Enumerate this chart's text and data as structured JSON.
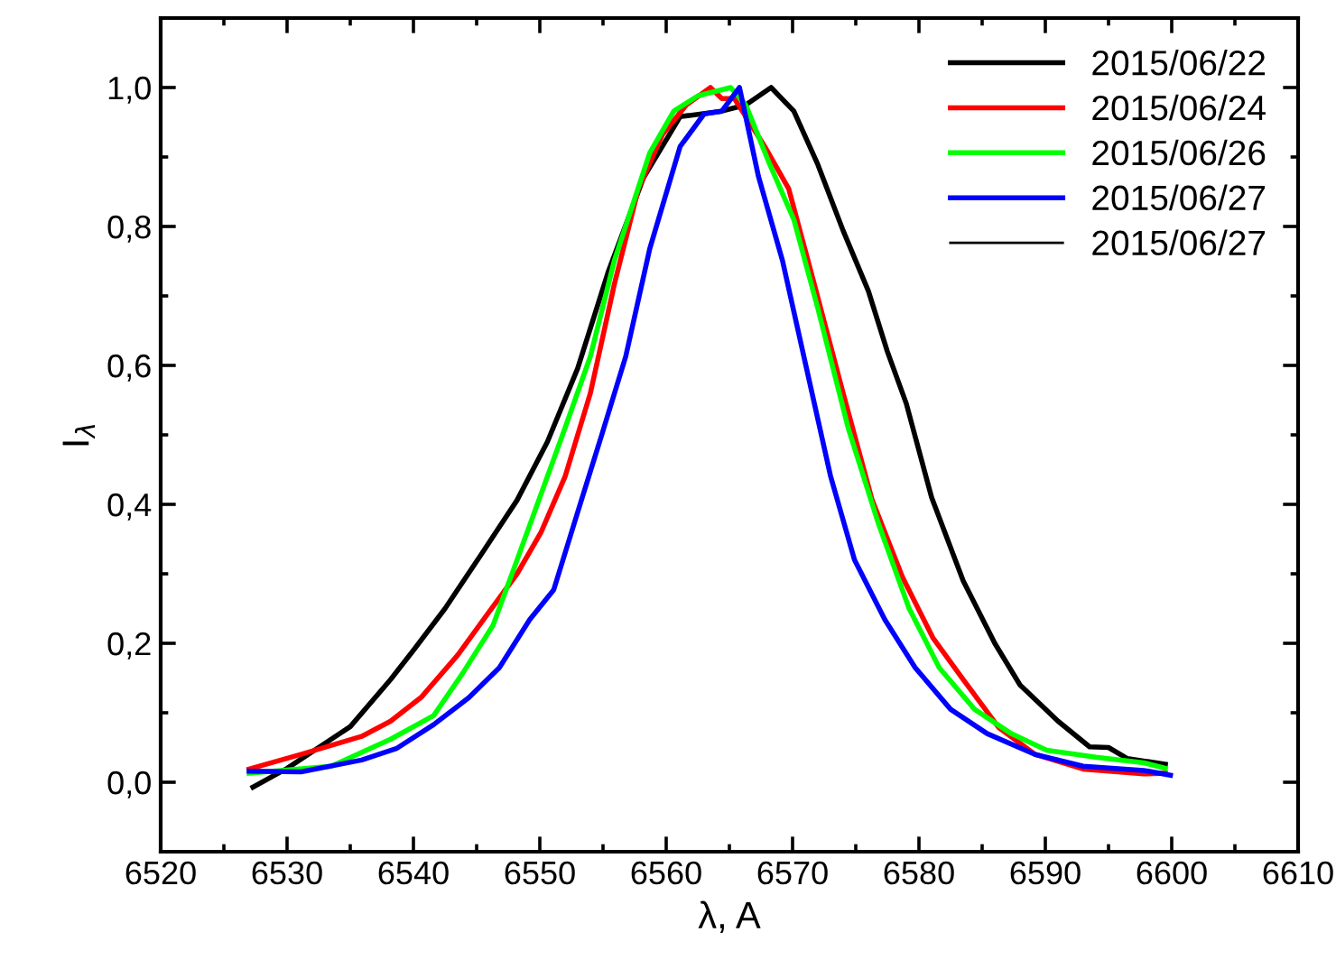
{
  "chart_data": {
    "type": "line",
    "xlabel": "λ, A",
    "ylabel": "I$_{λ}$",
    "xlim": [
      6520,
      6610
    ],
    "xticks": [
      6520,
      6530,
      6540,
      6550,
      6560,
      6570,
      6580,
      6590,
      6600,
      6610
    ],
    "ylim": [
      -0.1,
      1.1
    ],
    "yticks": [
      {
        "value": 0,
        "label": "0,0"
      },
      {
        "value": 0.2,
        "label": "0,2"
      },
      {
        "value": 0.4,
        "label": "0,4"
      },
      {
        "value": 0.6,
        "label": "0,6"
      },
      {
        "value": 0.8,
        "label": "0,8"
      },
      {
        "value": 1.0,
        "label": "1,0"
      }
    ],
    "grid": false,
    "legend": "top right",
    "line_style": "solid",
    "marker": "none",
    "series": [
      {
        "name": "2015/06/22",
        "color": "#000000",
        "x": [
          6527.3,
          6530,
          6533.5,
          6535,
          6538.2,
          6540,
          6542.5,
          6545.4,
          6548.2,
          6550.6,
          6553,
          6555.4,
          6558.2,
          6561.1,
          6564.4,
          6566.3,
          6568.3,
          6570.1,
          6572,
          6574,
          6576,
          6577.5,
          6579,
          6581,
          6583.5,
          6586,
          6588,
          6591,
          6593.5,
          6595,
          6596.5,
          6599.5
        ],
        "values": [
          -0.007,
          0.02,
          0.062,
          0.08,
          0.148,
          0.19,
          0.25,
          0.329,
          0.406,
          0.49,
          0.596,
          0.734,
          0.87,
          0.958,
          0.966,
          0.975,
          1.0,
          0.966,
          0.889,
          0.794,
          0.707,
          0.62,
          0.545,
          0.41,
          0.29,
          0.2,
          0.14,
          0.088,
          0.051,
          0.05,
          0.034,
          0.026
        ]
      },
      {
        "name": "2015/06/24",
        "color": "#ff0000",
        "x": [
          6527,
          6531.1,
          6535.9,
          6538.2,
          6540.6,
          6543.5,
          6545.9,
          6548.2,
          6550.1,
          6552,
          6554,
          6555.9,
          6557.8,
          6559.7,
          6561.6,
          6563.5,
          6564.4,
          6565.4,
          6567.8,
          6569.7,
          6571.6,
          6574,
          6576.3,
          6578.7,
          6581.1,
          6583.5,
          6586.3,
          6589.2,
          6593,
          6597.8,
          6599.5
        ],
        "values": [
          0.019,
          0.04,
          0.066,
          0.088,
          0.122,
          0.183,
          0.243,
          0.3,
          0.36,
          0.44,
          0.56,
          0.717,
          0.854,
          0.932,
          0.975,
          1.0,
          0.984,
          0.984,
          0.915,
          0.854,
          0.725,
          0.56,
          0.406,
          0.295,
          0.208,
          0.148,
          0.079,
          0.04,
          0.019,
          0.012,
          0.013
        ]
      },
      {
        "name": "2015/06/26",
        "color": "#00ff00",
        "x": [
          6527,
          6533.5,
          6538.2,
          6541.6,
          6543.9,
          6546.3,
          6548.2,
          6550.1,
          6552,
          6554,
          6555.9,
          6558.7,
          6560.6,
          6562.5,
          6565.1,
          6566.3,
          6568.2,
          6570.1,
          6572,
          6574.4,
          6576.8,
          6579.2,
          6581.6,
          6584.4,
          6587.3,
          6590.1,
          6594,
          6597.8,
          6599.5
        ],
        "values": [
          0.013,
          0.023,
          0.062,
          0.096,
          0.157,
          0.226,
          0.32,
          0.415,
          0.51,
          0.613,
          0.751,
          0.906,
          0.966,
          0.988,
          1.0,
          0.975,
          0.889,
          0.81,
          0.682,
          0.51,
          0.372,
          0.251,
          0.165,
          0.105,
          0.07,
          0.046,
          0.036,
          0.028,
          0.02
        ]
      },
      {
        "name": "2015/06/27",
        "color": "#0000ff",
        "x": [
          6527,
          6531.1,
          6535.9,
          6538.7,
          6541.6,
          6544.4,
          6546.8,
          6549.2,
          6551.1,
          6553,
          6554.9,
          6556.8,
          6558.7,
          6561.1,
          6563,
          6564.4,
          6565.8,
          6567.3,
          6569.2,
          6571.1,
          6573,
          6574.9,
          6577.3,
          6579.7,
          6582.5,
          6585.4,
          6589.2,
          6593,
          6597.8,
          6599.9
        ],
        "values": [
          0.016,
          0.015,
          0.032,
          0.049,
          0.083,
          0.122,
          0.165,
          0.234,
          0.277,
          0.389,
          0.5,
          0.613,
          0.768,
          0.915,
          0.962,
          0.966,
          1.0,
          0.872,
          0.751,
          0.596,
          0.441,
          0.32,
          0.234,
          0.165,
          0.105,
          0.07,
          0.04,
          0.023,
          0.017,
          0.01
        ]
      },
      {
        "name": "2015/06/27",
        "color": "#000000"
      }
    ]
  }
}
